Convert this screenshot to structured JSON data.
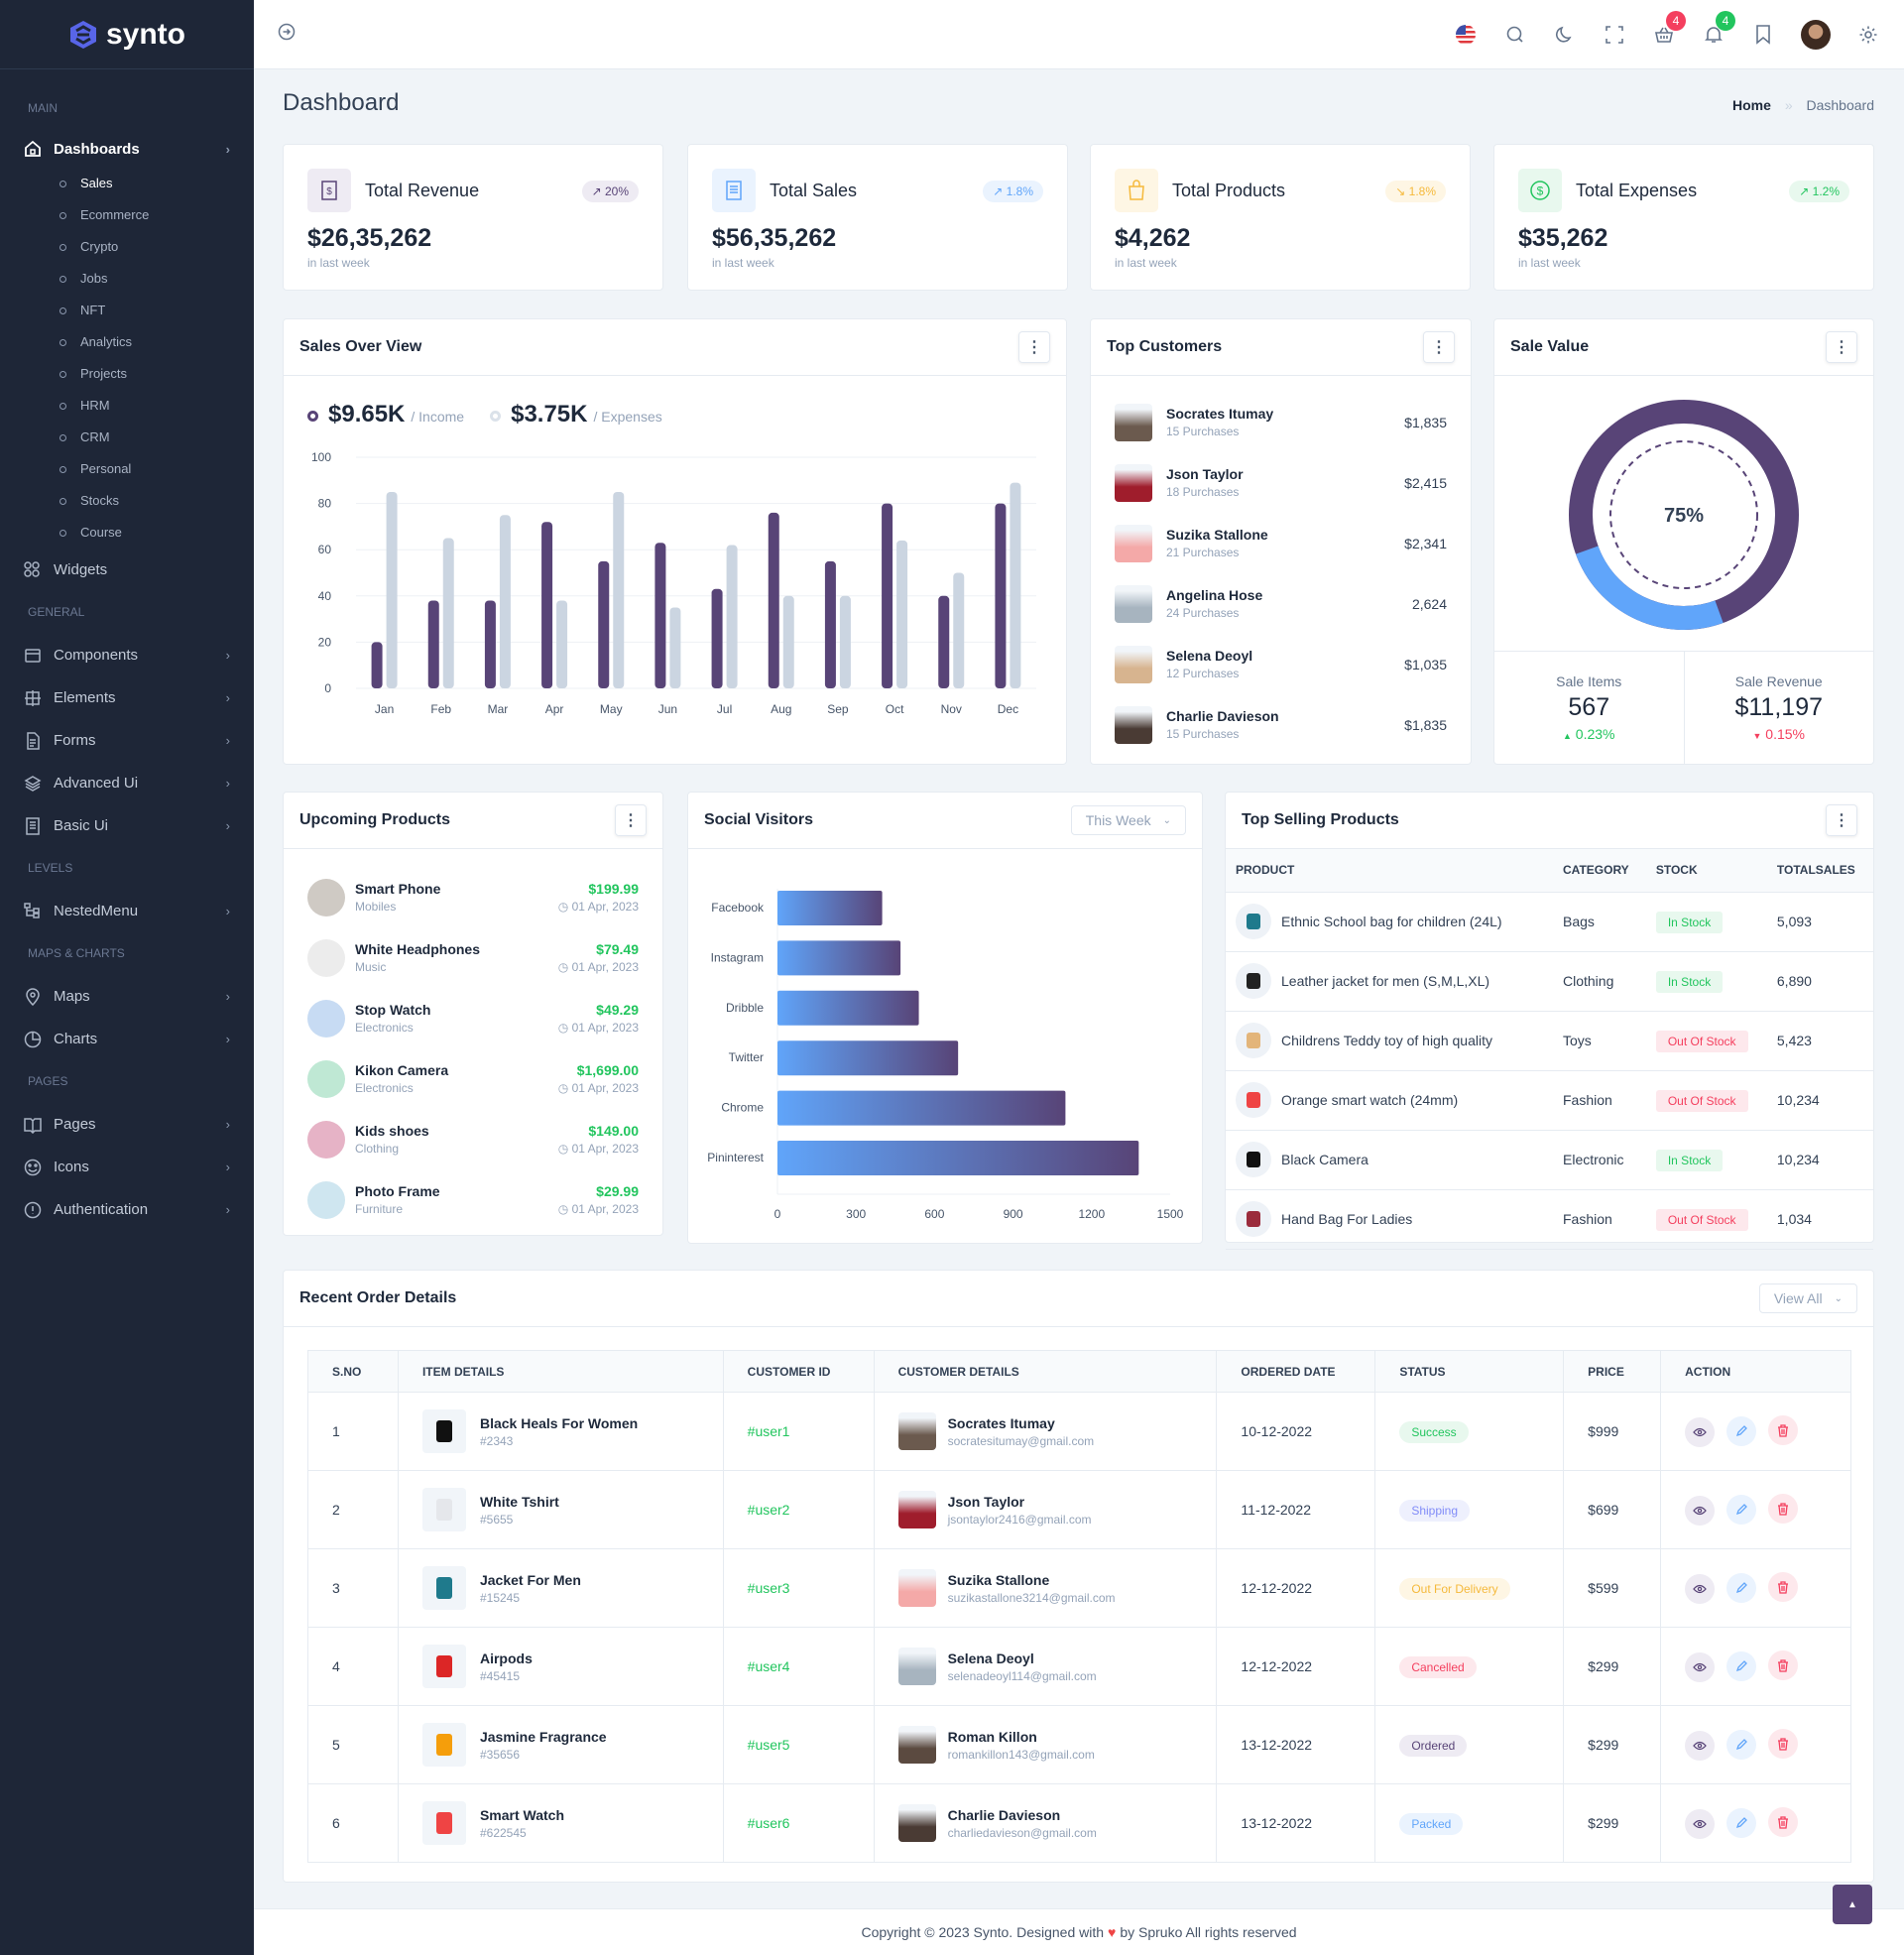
{
  "brand": {
    "name": "synto",
    "accent": "#584477",
    "blue": "#60a5fa"
  },
  "sidebar": {
    "main_label": "MAIN",
    "dashboards": "Dashboards",
    "sub_items": [
      "Sales",
      "Ecommerce",
      "Crypto",
      "Jobs",
      "NFT",
      "Analytics",
      "Projects",
      "HRM",
      "CRM",
      "Personal",
      "Stocks",
      "Course"
    ],
    "widgets": "Widgets",
    "general_label": "GENERAL",
    "general": [
      "Components",
      "Elements",
      "Forms",
      "Advanced Ui",
      "Basic Ui"
    ],
    "levels_label": "LEVELS",
    "nested": "NestedMenu",
    "maps_label": "MAPS & CHARTS",
    "maps": [
      "Maps",
      "Charts"
    ],
    "pages_label": "PAGES",
    "pages": [
      "Pages",
      "Icons",
      "Authentication"
    ]
  },
  "header": {
    "cart_count": "4",
    "notif_count": "4"
  },
  "page": {
    "title": "Dashboard",
    "crumb_home": "Home",
    "crumb_sep": "»",
    "crumb_current": "Dashboard"
  },
  "stats": [
    {
      "name": "Total Revenue",
      "value": "$26,35,262",
      "sub": "in last week",
      "change": "20%",
      "trend": "up",
      "color": "#584477",
      "bg": "#eeebf3",
      "icon": "receipt-dollar-icon"
    },
    {
      "name": "Total Sales",
      "value": "$56,35,262",
      "sub": "in last week",
      "change": "1.8%",
      "trend": "up",
      "color": "#60a5fa",
      "bg": "#eaf3fe",
      "icon": "receipt-icon"
    },
    {
      "name": "Total Products",
      "value": "$4,262",
      "sub": "in last week",
      "change": "1.8%",
      "trend": "down",
      "color": "#f5b93b",
      "bg": "#fef6e4",
      "icon": "shopping-bag-icon"
    },
    {
      "name": "Total Expenses",
      "value": "$35,262",
      "sub": "in last week",
      "change": "1.2%",
      "trend": "up",
      "color": "#22c55e",
      "bg": "#e8f8ee",
      "icon": "dollar-circle-icon"
    }
  ],
  "sales_overview": {
    "title": "Sales Over View",
    "income_value": "$9.65K",
    "income_label": "/ Income",
    "expense_value": "$3.75K",
    "expense_label": "/ Expenses"
  },
  "chart_data": [
    {
      "type": "bar",
      "categories": [
        "Jan",
        "Feb",
        "Mar",
        "Apr",
        "May",
        "Jun",
        "Jul",
        "Aug",
        "Sep",
        "Oct",
        "Nov",
        "Dec"
      ],
      "series": [
        {
          "name": "Income",
          "values": [
            20,
            38,
            38,
            72,
            55,
            63,
            43,
            76,
            55,
            80,
            40,
            80
          ],
          "color": "#584477"
        },
        {
          "name": "Expenses",
          "values": [
            85,
            65,
            75,
            38,
            85,
            35,
            62,
            40,
            40,
            64,
            50,
            89
          ],
          "color": "#cbd5e1"
        }
      ],
      "yticks": [
        0,
        20,
        40,
        60,
        80,
        100
      ],
      "ylim": [
        0,
        100
      ],
      "grid": true
    },
    {
      "type": "bar",
      "orientation": "horizontal",
      "categories": [
        "Facebook",
        "Instagram",
        "Dribble",
        "Twitter",
        "Chrome",
        "Pininterest"
      ],
      "values": [
        400,
        470,
        540,
        690,
        1100,
        1380
      ],
      "xticks": [
        0,
        300,
        600,
        900,
        1200,
        1500
      ],
      "xlim": [
        0,
        1500
      ]
    },
    {
      "type": "pie",
      "donut": true,
      "value_percent": 75,
      "label": "75%",
      "colors": [
        "#584477",
        "#60a5fa"
      ]
    }
  ],
  "top_customers": {
    "title": "Top Customers",
    "items": [
      {
        "name": "Socrates Itumay",
        "sub": "15 Purchases",
        "amount": "$1,835",
        "color": "#6b5a4e"
      },
      {
        "name": "Json Taylor",
        "sub": "18 Purchases",
        "amount": "$2,415",
        "color": "#9f1d2c"
      },
      {
        "name": "Suzika Stallone",
        "sub": "21 Purchases",
        "amount": "$2,341",
        "color": "#f4a9a8"
      },
      {
        "name": "Angelina Hose",
        "sub": "24 Purchases",
        "amount": "2,624",
        "color": "#a7b4bf"
      },
      {
        "name": "Selena Deoyl",
        "sub": "12 Purchases",
        "amount": "$1,035",
        "color": "#d7b48f"
      },
      {
        "name": "Charlie Davieson",
        "sub": "15 Purchases",
        "amount": "$1,835",
        "color": "#4a3b34"
      }
    ]
  },
  "sale_value": {
    "title": "Sale Value",
    "items_label": "Sale Items",
    "items_value": "567",
    "items_change": "0.23%",
    "revenue_label": "Sale Revenue",
    "revenue_value": "$11,197",
    "revenue_change": "0.15%"
  },
  "upcoming": {
    "title": "Upcoming Products",
    "items": [
      {
        "name": "Smart Phone",
        "cat": "Mobiles",
        "price": "$199.99",
        "date": "01 Apr, 2023",
        "color": "#cfcac4"
      },
      {
        "name": "White Headphones",
        "cat": "Music",
        "price": "$79.49",
        "date": "01 Apr, 2023",
        "color": "#ececec"
      },
      {
        "name": "Stop Watch",
        "cat": "Electronics",
        "price": "$49.29",
        "date": "01 Apr, 2023",
        "color": "#c7dbf3"
      },
      {
        "name": "Kikon Camera",
        "cat": "Electronics",
        "price": "$1,699.00",
        "date": "01 Apr, 2023",
        "color": "#bfe8d4"
      },
      {
        "name": "Kids shoes",
        "cat": "Clothing",
        "price": "$149.00",
        "date": "01 Apr, 2023",
        "color": "#e6b3c6"
      },
      {
        "name": "Photo Frame",
        "cat": "Furniture",
        "price": "$29.99",
        "date": "01 Apr, 2023",
        "color": "#cfe6f0"
      }
    ]
  },
  "social": {
    "title": "Social Visitors",
    "filter": "This Week"
  },
  "top_selling": {
    "title": "Top Selling Products",
    "headers": [
      "PRODUCT",
      "CATEGORY",
      "STOCK",
      "TOTALSALES"
    ],
    "rows": [
      {
        "product": "Ethnic School bag for children (24L)",
        "category": "Bags",
        "stock": "In Stock",
        "sales": "5,093",
        "color": "#1f7a8c"
      },
      {
        "product": "Leather jacket for men (S,M,L,XL)",
        "category": "Clothing",
        "stock": "In Stock",
        "sales": "6,890",
        "color": "#222"
      },
      {
        "product": "Childrens Teddy toy of high quality",
        "category": "Toys",
        "stock": "Out Of Stock",
        "sales": "5,423",
        "color": "#e3b57a"
      },
      {
        "product": "Orange smart watch (24mm)",
        "category": "Fashion",
        "stock": "Out Of Stock",
        "sales": "10,234",
        "color": "#ef4444"
      },
      {
        "product": "Black Camera",
        "category": "Electronic",
        "stock": "In Stock",
        "sales": "10,234",
        "color": "#111"
      },
      {
        "product": "Hand Bag For Ladies",
        "category": "Fashion",
        "stock": "Out Of Stock",
        "sales": "1,034",
        "color": "#9b2c3c"
      }
    ]
  },
  "orders": {
    "title": "Recent Order Details",
    "view_all": "View All",
    "headers": [
      "S.NO",
      "ITEM DETAILS",
      "CUSTOMER ID",
      "CUSTOMER DETAILS",
      "ORDERED DATE",
      "STATUS",
      "PRICE",
      "ACTION"
    ],
    "rows": [
      {
        "sno": "1",
        "item": "Black Heals For Women",
        "item_id": "#2343",
        "cid": "#user1",
        "cname": "Socrates Itumay",
        "email": "socratesitumay@gmail.com",
        "date": "10-12-2022",
        "status": "Success",
        "price": "$999",
        "status_fg": "#22c55e",
        "status_bg": "#e8f8ee",
        "item_color": "#111",
        "av_color": "#6b5a4e"
      },
      {
        "sno": "2",
        "item": "White Tshirt",
        "item_id": "#5655",
        "cid": "#user2",
        "cname": "Json Taylor",
        "email": "jsontaylor2416@gmail.com",
        "date": "11-12-2022",
        "status": "Shipping",
        "price": "$699",
        "status_fg": "#818cf8",
        "status_bg": "#eef0fd",
        "item_color": "#e5e7eb",
        "av_color": "#9f1d2c"
      },
      {
        "sno": "3",
        "item": "Jacket For Men",
        "item_id": "#15245",
        "cid": "#user3",
        "cname": "Suzika Stallone",
        "email": "suzikastallone3214@gmail.com",
        "date": "12-12-2022",
        "status": "Out For Delivery",
        "price": "$599",
        "status_fg": "#f5b93b",
        "status_bg": "#fef6e4",
        "item_color": "#1f7a8c",
        "av_color": "#f4a9a8"
      },
      {
        "sno": "4",
        "item": "Airpods",
        "item_id": "#45415",
        "cid": "#user4",
        "cname": "Selena Deoyl",
        "email": "selenadeoyl114@gmail.com",
        "date": "12-12-2022",
        "status": "Cancelled",
        "price": "$299",
        "status_fg": "#f43f5e",
        "status_bg": "#fde8ec",
        "item_color": "#dc2626",
        "av_color": "#a7b4bf"
      },
      {
        "sno": "5",
        "item": "Jasmine Fragrance",
        "item_id": "#35656",
        "cid": "#user5",
        "cname": "Roman Killon",
        "email": "romankillon143@gmail.com",
        "date": "13-12-2022",
        "status": "Ordered",
        "price": "$299",
        "status_fg": "#584477",
        "status_bg": "#eeebf3",
        "item_color": "#f59e0b",
        "av_color": "#5b4a40"
      },
      {
        "sno": "6",
        "item": "Smart Watch",
        "item_id": "#622545",
        "cid": "#user6",
        "cname": "Charlie Davieson",
        "email": "charliedavieson@gmail.com",
        "date": "13-12-2022",
        "status": "Packed",
        "price": "$299",
        "status_fg": "#60a5fa",
        "status_bg": "#eaf3fe",
        "item_color": "#ef4444",
        "av_color": "#4a3b34"
      }
    ]
  },
  "footer": {
    "before": "Copyright © 2023 Synto. Designed with",
    "after": "by Spruko All rights reserved"
  }
}
